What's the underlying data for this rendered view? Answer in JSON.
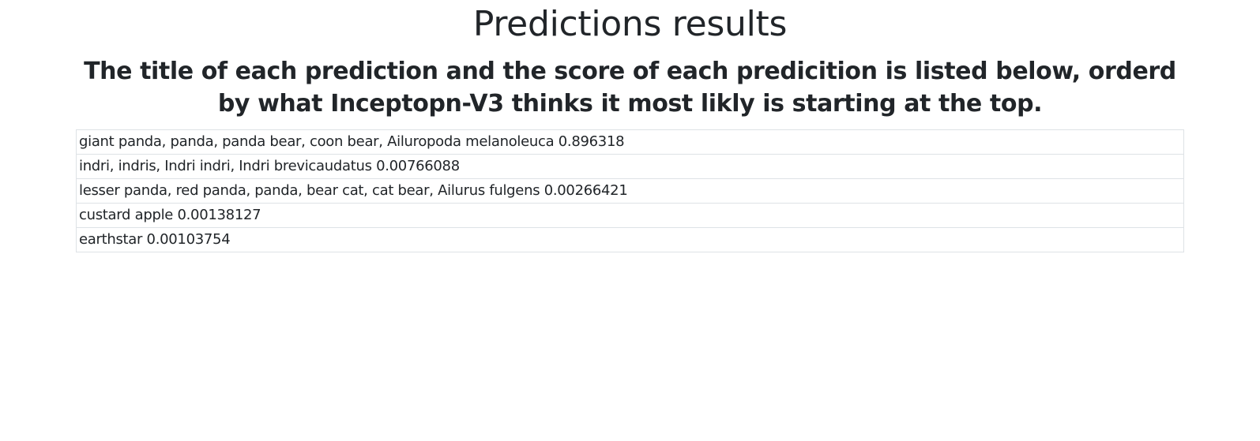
{
  "page": {
    "title": "Predictions results",
    "subtitle": "The title of each prediction and the score of each predicition is listed below, orderd by what Inceptopn-V3 thinks it most likly is starting at the top."
  },
  "predictions": [
    {
      "text": "giant panda, panda, panda bear, coon bear, Ailuropoda melanoleuca 0.896318"
    },
    {
      "text": "indri, indris, Indri indri, Indri brevicaudatus 0.00766088"
    },
    {
      "text": "lesser panda, red panda, panda, bear cat, cat bear, Ailurus fulgens 0.00266421"
    },
    {
      "text": "custard apple 0.00138127"
    },
    {
      "text": "earthstar 0.00103754"
    }
  ]
}
